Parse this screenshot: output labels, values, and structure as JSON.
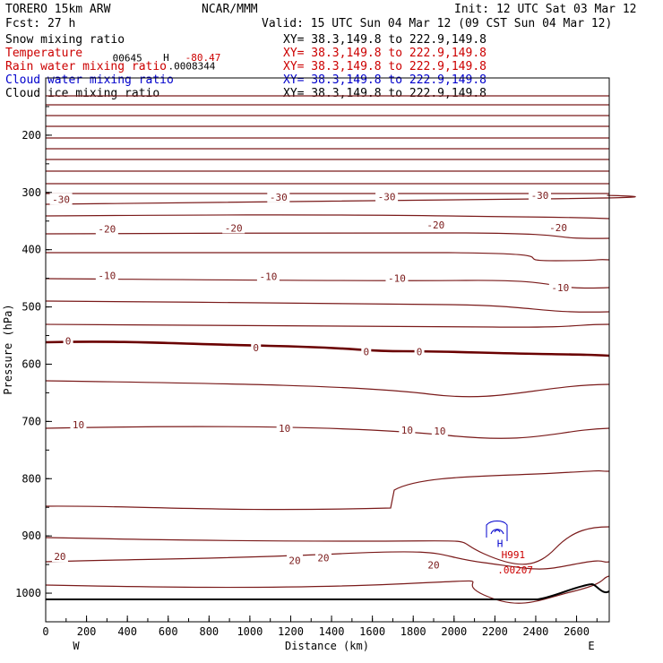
{
  "header": {
    "model": "TORERO  15km ARW",
    "center": "NCAR/MMM",
    "init": "Init: 12 UTC Sat 03 Mar 12",
    "fcst": "Fcst:   27 h",
    "valid": "Valid: 15 UTC Sun 04 Mar 12 (09 CST Sun 04 Mar 12)"
  },
  "legend": [
    {
      "label": "Snow mixing ratio",
      "xy": "XY=  38.3,149.8 to 222.9,149.8",
      "color": "#000000"
    },
    {
      "label": "Temperature",
      "xy": "XY=  38.3,149.8 to 222.9,149.8",
      "color": "#cc0000"
    },
    {
      "label": "Rain water mixing ratio",
      "xy": "XY=  38.3,149.8 to 222.9,149.8",
      "color": "#cc0000"
    },
    {
      "label": "Cloud water mixing ratio",
      "xy": "XY=  38.3,149.8 to 222.9,149.8",
      "color": "#0000cc"
    },
    {
      "label": "Cloud ice mixing ratio",
      "xy": "XY=  38.3,149.8 to 222.9,149.8",
      "color": "#000000"
    }
  ],
  "chart_data": {
    "type": "line",
    "subtype": "vertical cross-section contour",
    "xlabel": "Distance (km)",
    "ylabel": "Pressure (hPa)",
    "xlim": [
      0,
      2760
    ],
    "ylim": [
      1050,
      100
    ],
    "x_ticks": [
      0,
      200,
      400,
      600,
      800,
      1000,
      1200,
      1400,
      1600,
      1800,
      2000,
      2200,
      2400,
      2600
    ],
    "y_ticks": [
      200,
      300,
      400,
      500,
      600,
      700,
      800,
      900,
      1000
    ],
    "x_end_labels": [
      "W",
      "E"
    ],
    "temperature_contour_labels": [
      {
        "text": "-30",
        "x": 75,
        "p": 312
      },
      {
        "text": "-30",
        "x": 1140,
        "p": 308
      },
      {
        "text": "-30",
        "x": 1670,
        "p": 307
      },
      {
        "text": "-30",
        "x": 2420,
        "p": 305
      },
      {
        "text": "-20",
        "x": 300,
        "p": 364
      },
      {
        "text": "-20",
        "x": 920,
        "p": 362
      },
      {
        "text": "-20",
        "x": 1910,
        "p": 357
      },
      {
        "text": "-20",
        "x": 2510,
        "p": 361
      },
      {
        "text": "-10",
        "x": 300,
        "p": 445
      },
      {
        "text": "-10",
        "x": 1090,
        "p": 447
      },
      {
        "text": "-10",
        "x": 1720,
        "p": 450
      },
      {
        "text": "-10",
        "x": 2520,
        "p": 466
      },
      {
        "text": "0",
        "x": 110,
        "p": 559
      },
      {
        "text": "0",
        "x": 1030,
        "p": 571
      },
      {
        "text": "0",
        "x": 1570,
        "p": 578
      },
      {
        "text": "0",
        "x": 1830,
        "p": 578
      },
      {
        "text": "10",
        "x": 160,
        "p": 706
      },
      {
        "text": "10",
        "x": 1170,
        "p": 712
      },
      {
        "text": "10",
        "x": 1770,
        "p": 715
      },
      {
        "text": "10",
        "x": 1930,
        "p": 717
      },
      {
        "text": "20",
        "x": 70,
        "p": 936
      },
      {
        "text": "20",
        "x": 1220,
        "p": 943
      },
      {
        "text": "20",
        "x": 1360,
        "p": 938
      },
      {
        "text": "20",
        "x": 1900,
        "p": 951
      }
    ],
    "max_min_labels": [
      {
        "text": "00645",
        "x": 400,
        "p": 65,
        "color": "#000000"
      },
      {
        "text": "H",
        "x": 590,
        "p": 64,
        "color": "#000000"
      },
      {
        "text": "-80.47",
        "x": 770,
        "p": 64,
        "color": "#cc0000"
      },
      {
        "text": ".0008344",
        "x": 715,
        "p": 79,
        "color": "#000000"
      },
      {
        "text": "H",
        "x": 2225,
        "p": 913,
        "color": "#0000cc"
      },
      {
        "text": "H991",
        "x": 2290,
        "p": 933,
        "color": "#cc0000"
      },
      {
        "text": ".00207",
        "x": 2300,
        "p": 959,
        "color": "#cc0000"
      }
    ]
  }
}
